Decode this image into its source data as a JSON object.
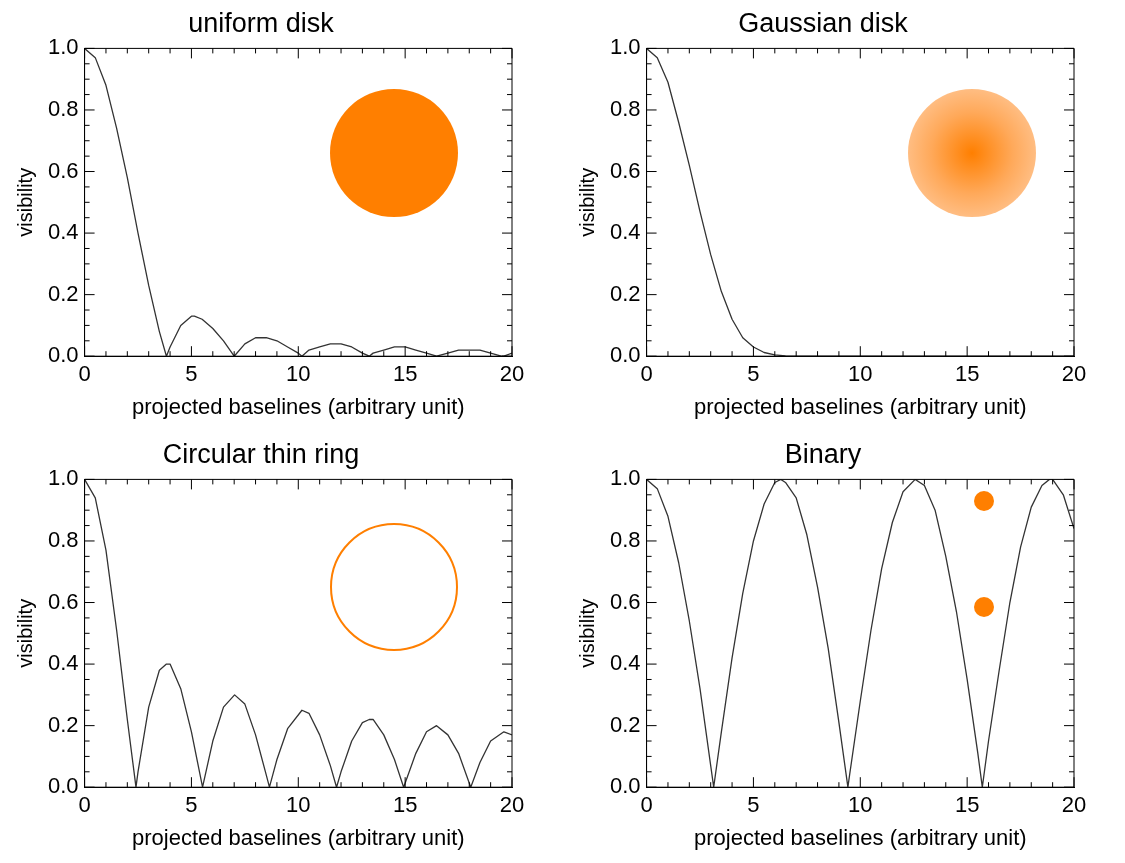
{
  "chart_data": [
    {
      "type": "line",
      "title": "uniform disk",
      "xlabel": "projected baselines (arbitrary unit)",
      "ylabel": "visibility",
      "color": "#333333",
      "marker": "none",
      "line_style": "solid",
      "grid": false,
      "legend": false,
      "xlim": [
        0,
        20
      ],
      "ylim": [
        0,
        1
      ],
      "xticks": [
        0,
        5,
        10,
        15,
        20
      ],
      "yticks": [
        {
          "value": 0,
          "label": "0.0"
        },
        {
          "value": 0.2,
          "label": "0.2"
        },
        {
          "value": 0.4,
          "label": "0.4"
        },
        {
          "value": 0.6,
          "label": "0.6"
        },
        {
          "value": 0.8,
          "label": "0.8"
        },
        {
          "value": 1,
          "label": "1.0"
        }
      ],
      "x": [
        0,
        0.5,
        1,
        1.5,
        2,
        2.5,
        3,
        3.5,
        3.83,
        4,
        4.5,
        5,
        5.14,
        5.5,
        6,
        6.5,
        7,
        7.02,
        7.5,
        8,
        8.5,
        9,
        9.5,
        10,
        10.17,
        10.5,
        11,
        11.5,
        12,
        12.5,
        13,
        13.32,
        13.5,
        14,
        14.5,
        15,
        15.5,
        16,
        16.47,
        17,
        17.5,
        18,
        18.5,
        19,
        19.5,
        19.62,
        20
      ],
      "values": [
        1,
        0.97,
        0.88,
        0.74,
        0.58,
        0.4,
        0.23,
        0.08,
        0,
        0.03,
        0.1,
        0.13,
        0.13,
        0.12,
        0.09,
        0.05,
        0,
        0,
        0.04,
        0.06,
        0.06,
        0.05,
        0.03,
        0.01,
        0,
        0.02,
        0.03,
        0.04,
        0.04,
        0.03,
        0.01,
        0,
        0.01,
        0.02,
        0.03,
        0.03,
        0.02,
        0.01,
        0,
        0.01,
        0.02,
        0.02,
        0.02,
        0.01,
        0,
        0,
        0.01
      ]
    },
    {
      "type": "line",
      "title": "Gaussian disk",
      "xlabel": "projected baselines (arbitrary unit)",
      "ylabel": "visibility",
      "color": "#333333",
      "marker": "none",
      "line_style": "solid",
      "grid": false,
      "legend": false,
      "xlim": [
        0,
        20
      ],
      "ylim": [
        0,
        1
      ],
      "xticks": [
        0,
        5,
        10,
        15,
        20
      ],
      "yticks": [
        {
          "value": 0,
          "label": "0.0"
        },
        {
          "value": 0.2,
          "label": "0.2"
        },
        {
          "value": 0.4,
          "label": "0.4"
        },
        {
          "value": 0.6,
          "label": "0.6"
        },
        {
          "value": 0.8,
          "label": "0.8"
        },
        {
          "value": 1,
          "label": "1.0"
        }
      ],
      "x": [
        0,
        0.5,
        1,
        1.5,
        2,
        2.5,
        3,
        3.5,
        4,
        4.5,
        5,
        5.5,
        6,
        6.5,
        7,
        10,
        15,
        20
      ],
      "values": [
        1,
        0.97,
        0.89,
        0.76,
        0.62,
        0.47,
        0.33,
        0.21,
        0.12,
        0.06,
        0.03,
        0.012,
        0.004,
        0.001,
        0,
        0,
        0,
        0
      ]
    },
    {
      "type": "line",
      "title": "Circular thin ring",
      "xlabel": "projected baselines (arbitrary unit)",
      "ylabel": "visibility",
      "color": "#333333",
      "marker": "none",
      "line_style": "solid",
      "grid": false,
      "legend": false,
      "xlim": [
        0,
        20
      ],
      "ylim": [
        0,
        1
      ],
      "xticks": [
        0,
        5,
        10,
        15,
        20
      ],
      "yticks": [
        {
          "value": 0,
          "label": "0.0"
        },
        {
          "value": 0.2,
          "label": "0.2"
        },
        {
          "value": 0.4,
          "label": "0.4"
        },
        {
          "value": 0.6,
          "label": "0.6"
        },
        {
          "value": 0.8,
          "label": "0.8"
        },
        {
          "value": 1,
          "label": "1.0"
        }
      ],
      "x": [
        0,
        0.5,
        1,
        1.5,
        2,
        2.405,
        2.5,
        3,
        3.5,
        3.83,
        4,
        4.5,
        5,
        5.52,
        6,
        6.5,
        7.02,
        7.5,
        8,
        8.5,
        8.65,
        9,
        9.5,
        10.17,
        10.5,
        11,
        11.5,
        11.79,
        12,
        12.5,
        13,
        13.32,
        13.5,
        14,
        14.5,
        14.93,
        15.5,
        16,
        16.47,
        17,
        17.5,
        18.07,
        18.5,
        19,
        19.62,
        20
      ],
      "values": [
        1,
        0.94,
        0.77,
        0.51,
        0.22,
        0,
        0.05,
        0.26,
        0.38,
        0.4,
        0.4,
        0.32,
        0.18,
        0,
        0.15,
        0.26,
        0.3,
        0.27,
        0.17,
        0.04,
        0,
        0.09,
        0.19,
        0.25,
        0.24,
        0.17,
        0.07,
        0,
        0.05,
        0.15,
        0.21,
        0.22,
        0.22,
        0.17,
        0.09,
        0,
        0.11,
        0.18,
        0.2,
        0.17,
        0.11,
        0,
        0.08,
        0.15,
        0.18,
        0.17
      ]
    },
    {
      "type": "line",
      "title": "Binary",
      "xlabel": "projected baselines (arbitrary unit)",
      "ylabel": "visibility",
      "color": "#333333",
      "marker": "none",
      "line_style": "solid",
      "grid": false,
      "legend": false,
      "xlim": [
        0,
        20
      ],
      "ylim": [
        0,
        1
      ],
      "xticks": [
        0,
        5,
        10,
        15,
        20
      ],
      "yticks": [
        {
          "value": 0,
          "label": "0.0"
        },
        {
          "value": 0.2,
          "label": "0.2"
        },
        {
          "value": 0.4,
          "label": "0.4"
        },
        {
          "value": 0.6,
          "label": "0.6"
        },
        {
          "value": 0.8,
          "label": "0.8"
        },
        {
          "value": 1,
          "label": "1.0"
        }
      ],
      "x": [
        0,
        0.5,
        1,
        1.5,
        2,
        2.5,
        3,
        3.14,
        3.5,
        4,
        4.5,
        5,
        5.5,
        6,
        6.28,
        6.5,
        7,
        7.5,
        8,
        8.5,
        9,
        9.42,
        9.5,
        10,
        10.5,
        11,
        11.5,
        12,
        12.57,
        13,
        13.5,
        14,
        14.5,
        15,
        15.5,
        15.71,
        16,
        16.5,
        17,
        17.5,
        18,
        18.5,
        18.85,
        19,
        19.5,
        20
      ],
      "values": [
        1,
        0.97,
        0.88,
        0.73,
        0.54,
        0.32,
        0.07,
        0,
        0.18,
        0.42,
        0.63,
        0.8,
        0.92,
        0.99,
        1,
        0.99,
        0.94,
        0.82,
        0.65,
        0.45,
        0.21,
        0,
        0.04,
        0.28,
        0.51,
        0.71,
        0.86,
        0.96,
        1,
        0.98,
        0.9,
        0.75,
        0.57,
        0.35,
        0.11,
        0,
        0.15,
        0.38,
        0.6,
        0.78,
        0.91,
        0.98,
        1,
        1,
        0.95,
        0.84
      ]
    }
  ]
}
